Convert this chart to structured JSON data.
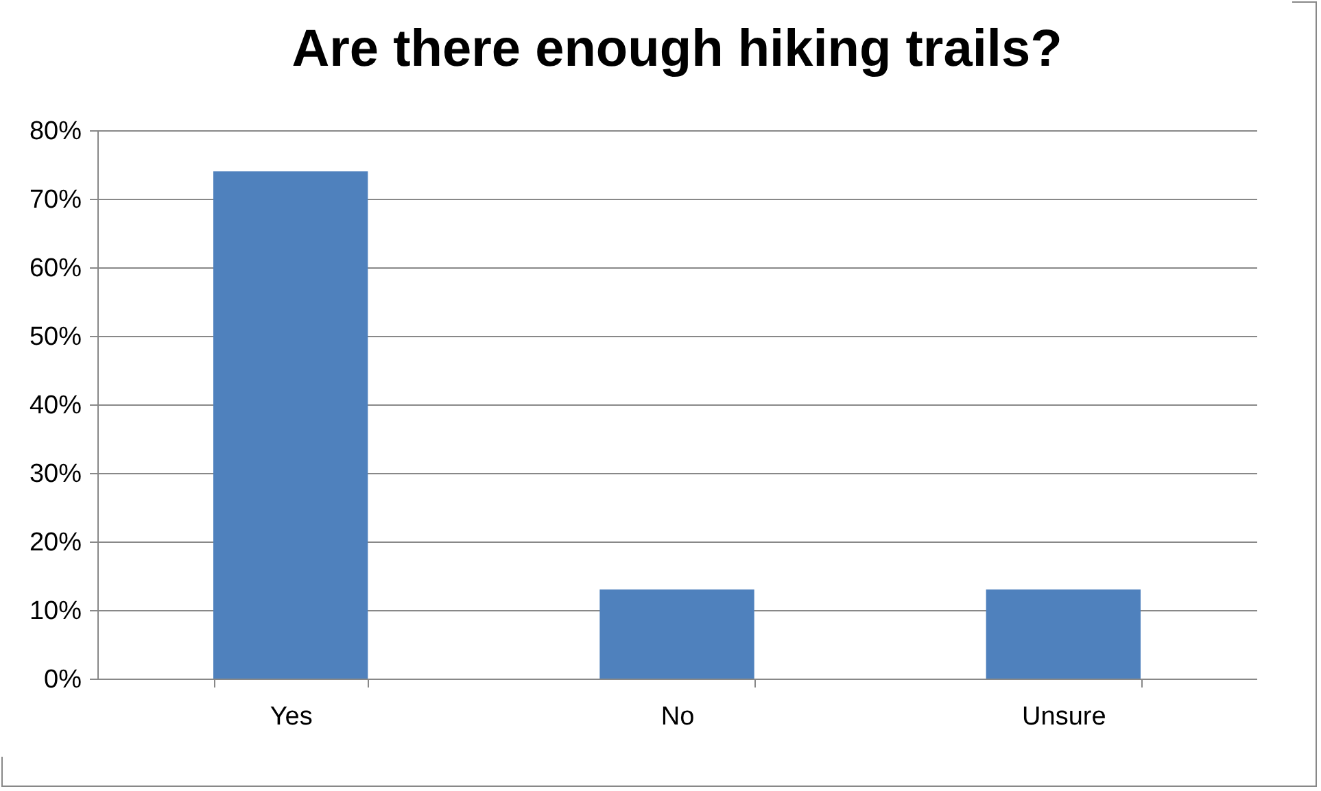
{
  "chart_data": {
    "type": "bar",
    "title": "Are there enough hiking trails?",
    "categories": [
      "Yes",
      "No",
      "Unsure"
    ],
    "values": [
      74,
      13,
      13
    ],
    "color": "#4f81bd",
    "ylim": [
      0,
      80
    ],
    "yticks": [
      {
        "value": 0,
        "label": "0%"
      },
      {
        "value": 10,
        "label": "10%"
      },
      {
        "value": 20,
        "label": "20%"
      },
      {
        "value": 30,
        "label": "30%"
      },
      {
        "value": 40,
        "label": "40%"
      },
      {
        "value": 50,
        "label": "50%"
      },
      {
        "value": 60,
        "label": "60%"
      },
      {
        "value": 70,
        "label": "70%"
      },
      {
        "value": 80,
        "label": "80%"
      }
    ],
    "grid": "y"
  }
}
